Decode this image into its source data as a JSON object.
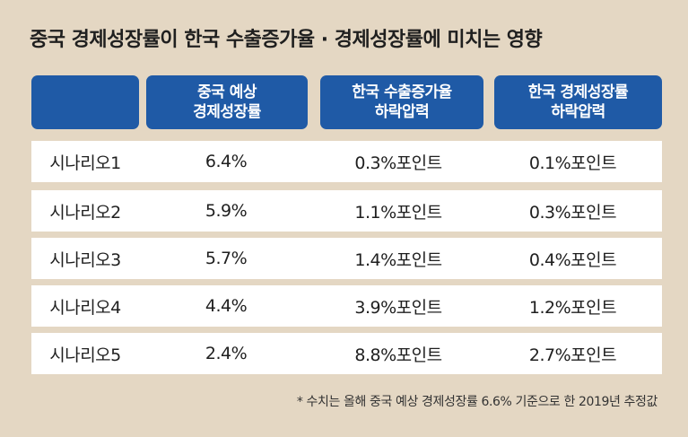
{
  "title": "중국 경제성장률이 한국 수출증가율 · 경제성장률에 미치는 영향",
  "headers": [
    {
      "line1": "",
      "line2": ""
    },
    {
      "line1": "중국 예상",
      "line2": "경제성장률"
    },
    {
      "line1": "한국 수출증가율",
      "line2": "하락압력"
    },
    {
      "line1": "한국 경제성장률",
      "line2": "하락압력"
    }
  ],
  "rows": [
    {
      "scenario": "시나리오1",
      "china_growth": "6.4%",
      "export_drop": "0.3%포인트",
      "gdp_drop": "0.1%포인트"
    },
    {
      "scenario": "시나리오2",
      "china_growth": "5.9%",
      "export_drop": "1.1%포인트",
      "gdp_drop": "0.3%포인트"
    },
    {
      "scenario": "시나리오3",
      "china_growth": "5.7%",
      "export_drop": "1.4%포인트",
      "gdp_drop": "0.4%포인트"
    },
    {
      "scenario": "시나리오4",
      "china_growth": "4.4%",
      "export_drop": "3.9%포인트",
      "gdp_drop": "1.2%포인트"
    },
    {
      "scenario": "시나리오5",
      "china_growth": "2.4%",
      "export_drop": "8.8%포인트",
      "gdp_drop": "2.7%포인트"
    }
  ],
  "note": "* 수치는 올해 중국 예상 경제성장률 6.6% 기준으로 한 2019년 추정값",
  "colors": {
    "background": "#e4d7c3",
    "header": "#1f5aa6",
    "row": "#ffffff"
  }
}
